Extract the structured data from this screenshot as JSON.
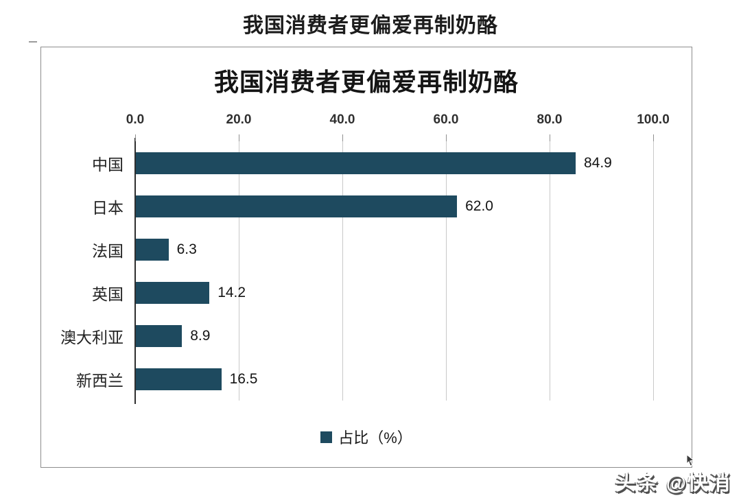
{
  "page_title": "我国消费者更偏爱再制奶酪",
  "watermark": "头条 @快消",
  "chart_data": {
    "type": "bar",
    "orientation": "horizontal",
    "title": "我国消费者更偏爱再制奶酪",
    "categories": [
      "中国",
      "日本",
      "法国",
      "英国",
      "澳大利亚",
      "新西兰"
    ],
    "values": [
      84.9,
      62.0,
      6.3,
      14.2,
      8.9,
      16.5
    ],
    "value_labels": [
      "84.9",
      "62.0",
      "6.3",
      "14.2",
      "8.9",
      "16.5"
    ],
    "series_name": "占比（%）",
    "legend": "占比（%）",
    "legend_position": "bottom-center",
    "x_ticks": [
      "0.0",
      "20.0",
      "40.0",
      "60.0",
      "80.0",
      "100.0"
    ],
    "xlim": [
      0,
      100
    ],
    "grid": true,
    "axis_position": "top",
    "colors": {
      "bar": "#1E4A5F",
      "grid": "#c8c8c8",
      "axis": "#2e2e2e"
    }
  }
}
